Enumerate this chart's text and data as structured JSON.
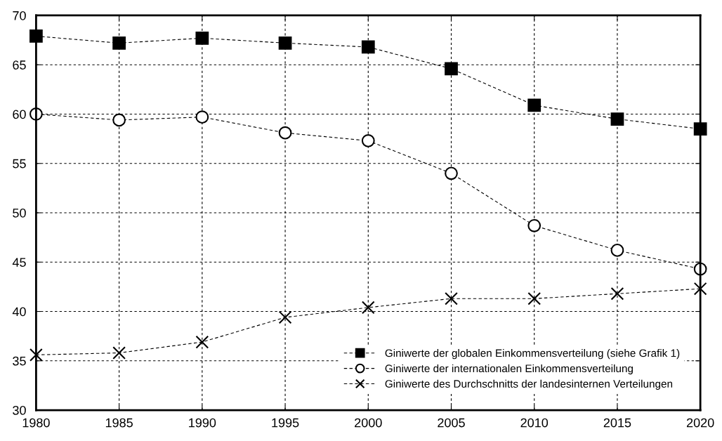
{
  "chart_data": {
    "type": "line",
    "x": [
      1980,
      1985,
      1990,
      1995,
      2000,
      2005,
      2010,
      2015,
      2020
    ],
    "series": [
      {
        "name": "Giniwerte der globalen Einkommensverteilung (siehe Grafik 1)",
        "color": "#000000",
        "marker": "square",
        "values": [
          67.9,
          67.2,
          67.7,
          67.2,
          66.8,
          64.6,
          60.9,
          59.5,
          58.5
        ]
      },
      {
        "name": "Giniwerte der internationalen Einkommensverteilung",
        "color": "#000000",
        "marker": "circle",
        "values": [
          60.0,
          59.4,
          59.7,
          58.1,
          57.3,
          54.0,
          48.7,
          46.2,
          44.3
        ]
      },
      {
        "name": "Giniwerte des Durchschnitts der landesinternen Verteilungen",
        "color": "#000000",
        "marker": "cross",
        "values": [
          35.6,
          35.8,
          36.9,
          39.4,
          40.4,
          41.3,
          41.3,
          41.8,
          42.3
        ]
      }
    ],
    "xlim": [
      1980,
      2020
    ],
    "xticks": [
      1980,
      1985,
      1990,
      1995,
      2000,
      2005,
      2010,
      2015,
      2020
    ],
    "ylim": [
      30,
      70
    ],
    "yticks": [
      30,
      35,
      40,
      45,
      50,
      55,
      60,
      65,
      70
    ],
    "grid": true,
    "legend": "bottom right",
    "line_style": "dashed"
  }
}
